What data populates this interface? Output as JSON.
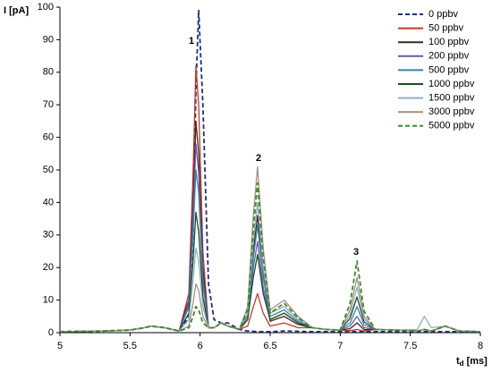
{
  "chart_data": {
    "type": "line",
    "y_label": "I [pA]",
    "x_label": {
      "main": "t",
      "sub": "d",
      "unit": "[ms]"
    },
    "annotations": [
      "1",
      "2",
      "3"
    ],
    "x": [
      5,
      5.3,
      5.5,
      5.6,
      5.65,
      5.75,
      5.85,
      5.92,
      5.95,
      5.97,
      5.99,
      6.02,
      6.06,
      6.1,
      6.15,
      6.2,
      6.28,
      6.34,
      6.38,
      6.41,
      6.45,
      6.5,
      6.6,
      6.7,
      6.8,
      6.9,
      7.0,
      7.07,
      7.12,
      7.17,
      7.25,
      7.4,
      7.55,
      7.6,
      7.65,
      7.75,
      7.85,
      8
    ],
    "xlim": [
      5,
      8
    ],
    "xticks": [
      5,
      5.5,
      6,
      6.5,
      7,
      7.5,
      8
    ],
    "ylim": [
      0,
      100
    ],
    "yticks": [
      0,
      10,
      20,
      30,
      40,
      50,
      60,
      70,
      80,
      90,
      100
    ],
    "grid": false,
    "legend": "top-right",
    "series": [
      {
        "name": "0 ppbv",
        "color": "#1f2f7a",
        "dashed": true,
        "values": [
          0.3,
          0.5,
          0.8,
          1.5,
          2,
          1.5,
          0.5,
          5,
          30,
          75,
          99,
          70,
          15,
          4,
          3,
          3,
          1,
          0.5,
          0.4,
          0.3,
          0.3,
          0.3,
          0.5,
          0.4,
          0.3,
          0.3,
          0.3,
          0.3,
          0.3,
          0.3,
          0.3,
          0.3,
          0.3,
          0.3,
          0.3,
          0.3,
          0.3,
          0.3
        ]
      },
      {
        "name": "50 ppbv",
        "color": "#c0392b",
        "dashed": false,
        "values": [
          0.3,
          0.5,
          0.8,
          1.5,
          2,
          1.5,
          0.5,
          12,
          49,
          82,
          70,
          25,
          1.5,
          1.5,
          3,
          2,
          1,
          2,
          8,
          12,
          6,
          2,
          3,
          1.5,
          1.5,
          1,
          0.8,
          0.6,
          1,
          0.5,
          1,
          0.8,
          0.5,
          1,
          0.5,
          2,
          0.5,
          0.3
        ]
      },
      {
        "name": "100 ppbv",
        "color": "#3b2a1e",
        "dashed": false,
        "values": [
          0.3,
          0.5,
          0.8,
          1.5,
          2,
          1.5,
          0.5,
          10,
          39,
          65,
          55,
          20,
          1.5,
          1.5,
          3,
          2,
          1,
          5,
          25,
          36,
          18,
          3.5,
          5,
          2.5,
          1.5,
          1,
          0.8,
          1.2,
          3,
          0.9,
          1,
          0.8,
          0.5,
          1,
          0.5,
          2,
          0.5,
          0.3
        ]
      },
      {
        "name": "200 ppbv",
        "color": "#6a5aa8",
        "dashed": false,
        "values": [
          0.3,
          0.5,
          0.8,
          1.5,
          2,
          1.5,
          0.5,
          9,
          35,
          58,
          49,
          17,
          1.5,
          1.5,
          3,
          2,
          1,
          4,
          20,
          28,
          14,
          4,
          6,
          3,
          1.5,
          1,
          0.8,
          2,
          5,
          1.5,
          1,
          0.8,
          0.5,
          1,
          0.5,
          2,
          0.5,
          0.3
        ]
      },
      {
        "name": "500 ppbv",
        "color": "#3f7fa8",
        "dashed": false,
        "values": [
          0.3,
          0.5,
          0.8,
          1.5,
          2,
          1.5,
          0.5,
          8,
          30,
          50,
          43,
          15,
          1.5,
          1.5,
          3,
          2,
          1,
          5,
          23,
          33,
          17,
          5,
          7,
          3.5,
          1.5,
          1,
          0.8,
          3,
          8,
          2.4,
          1,
          0.8,
          0.5,
          1,
          0.5,
          2,
          0.5,
          0.3
        ]
      },
      {
        "name": "1000 ppbv",
        "color": "#1e4d1e",
        "dashed": false,
        "values": [
          0.3,
          0.5,
          0.8,
          1.5,
          2,
          1.5,
          0.5,
          6,
          22,
          37,
          31,
          11,
          1.5,
          1.5,
          3,
          2,
          1,
          4,
          17,
          24,
          12,
          4,
          6,
          3,
          1.5,
          1,
          0.8,
          4.4,
          11,
          3.3,
          1,
          0.8,
          0.5,
          1,
          0.5,
          2,
          0.5,
          0.3
        ]
      },
      {
        "name": "1500 ppbv",
        "color": "#8fb0c8",
        "dashed": false,
        "values": [
          0.3,
          0.5,
          0.8,
          1.5,
          2,
          1.5,
          0.5,
          4,
          16,
          26,
          22,
          8,
          1.5,
          1.5,
          3,
          2,
          1,
          6,
          28,
          40,
          20,
          6,
          8,
          4,
          1.5,
          1,
          0.8,
          5.6,
          14,
          4.2,
          1,
          0.8,
          1,
          5,
          1.5,
          2,
          0.5,
          0.3
        ]
      },
      {
        "name": "3000 ppbv",
        "color": "#a89080",
        "dashed": false,
        "values": [
          0.3,
          0.5,
          0.8,
          1.5,
          2,
          1.5,
          0.5,
          2,
          9,
          15,
          13,
          5,
          1.5,
          1.5,
          3,
          2,
          1,
          8,
          36,
          51,
          26,
          7,
          10,
          5,
          1.5,
          1,
          0.8,
          7,
          17,
          5,
          1,
          0.8,
          0.5,
          1,
          0.5,
          2,
          0.5,
          0.3
        ]
      },
      {
        "name": "5000 ppbv",
        "color": "#3c8a2e",
        "dashed": true,
        "values": [
          0.3,
          0.5,
          0.8,
          1.5,
          2,
          1.5,
          0.5,
          1.5,
          5,
          8,
          7,
          3,
          1.5,
          1.5,
          3,
          2,
          1,
          7,
          32,
          46,
          23,
          6,
          9,
          4.5,
          1.5,
          1,
          0.8,
          9,
          22,
          6.6,
          1,
          0.8,
          0.5,
          1,
          0.5,
          2,
          0.5,
          0.3
        ]
      }
    ]
  }
}
